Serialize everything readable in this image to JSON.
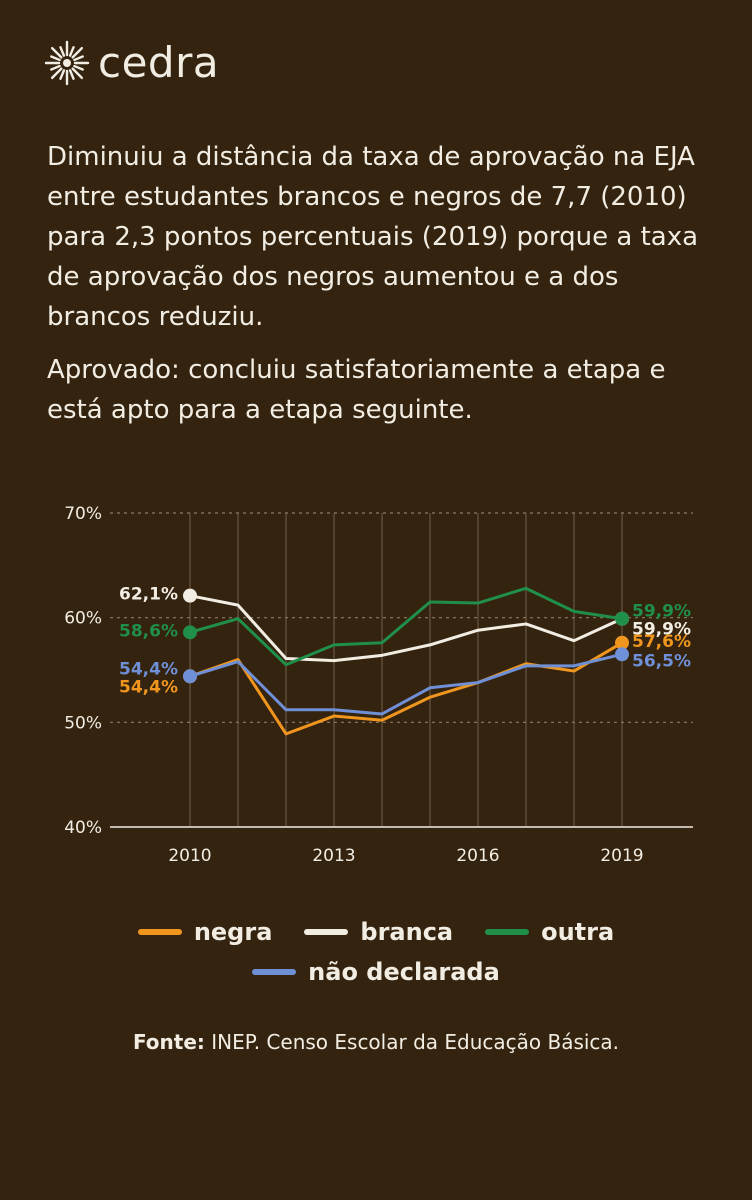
{
  "brand": {
    "name": "cedra"
  },
  "headline": "Diminuiu a distância da taxa de aprovação na EJA entre estudantes brancos e negros de 7,7 (2010) para 2,3 pontos percentuais (2019) porque a taxa de aprovação dos negros aumentou e a dos brancos reduziu.",
  "definition": "Aprovado: concluiu satisfatoriamente a etapa e está apto para a etapa seguinte.",
  "source": {
    "label": "Fonte:",
    "text": "INEP. Censo Escolar da Educação Básica."
  },
  "colors": {
    "background": "#34230f",
    "text": "#f2ede3",
    "grid": "#8a7c68",
    "negra": "#f0961e",
    "branca": "#f2ede3",
    "outra": "#1f8f4a",
    "nao_declarada": "#6f8fd6"
  },
  "chart_data": {
    "type": "line",
    "x": [
      2010,
      2011,
      2012,
      2013,
      2014,
      2015,
      2016,
      2017,
      2018,
      2019
    ],
    "x_tick_labels": [
      "2010",
      "2013",
      "2016",
      "2019"
    ],
    "x_ticks": [
      2010,
      2013,
      2016,
      2019
    ],
    "ylim": [
      40,
      70
    ],
    "y_ticks": [
      40,
      50,
      60,
      70
    ],
    "y_tick_labels": [
      "40%",
      "50%",
      "60%",
      "70%"
    ],
    "grid": true,
    "legend_position": "bottom",
    "series": [
      {
        "key": "negra",
        "name": "negra",
        "color": "#f0961e",
        "values": [
          54.4,
          56.0,
          48.9,
          50.6,
          50.2,
          52.4,
          53.8,
          55.6,
          54.9,
          57.6
        ],
        "start_label": "54,4%",
        "end_label": "57,6%"
      },
      {
        "key": "branca",
        "name": "branca",
        "color": "#f2ede3",
        "values": [
          62.1,
          61.2,
          56.1,
          55.9,
          56.4,
          57.4,
          58.8,
          59.4,
          57.8,
          59.9
        ],
        "start_label": "62,1%",
        "end_label": "59,9%"
      },
      {
        "key": "outra",
        "name": "outra",
        "color": "#1f8f4a",
        "values": [
          58.6,
          59.9,
          55.5,
          57.4,
          57.6,
          61.5,
          61.4,
          62.8,
          60.6,
          59.9
        ],
        "start_label": "58,6%",
        "end_label": "59,9%"
      },
      {
        "key": "nao_declarada",
        "name": "não declarada",
        "color": "#6f8fd6",
        "values": [
          54.4,
          55.8,
          51.2,
          51.2,
          50.8,
          53.3,
          53.8,
          55.4,
          55.4,
          56.5
        ],
        "start_label": "54,4%",
        "end_label": "56,5%"
      }
    ]
  }
}
